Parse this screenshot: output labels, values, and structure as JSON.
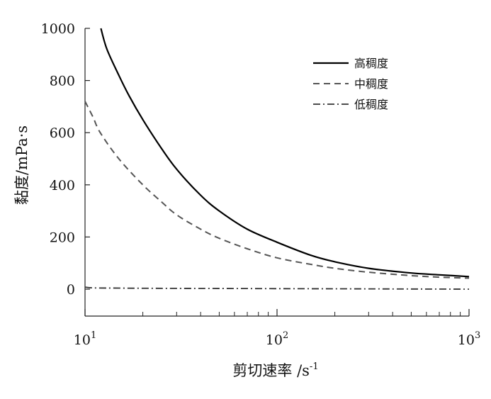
{
  "chart_data": {
    "type": "line",
    "title": "",
    "xlabel": "剪切速率 /s",
    "xlabel_sup": "-1",
    "ylabel": "黏度/mPa·s",
    "xscale": "log",
    "xlim": [
      10,
      1000
    ],
    "ylim": [
      -100,
      1000
    ],
    "x_ticks": [
      {
        "value": 10,
        "base": "10",
        "exp": "1"
      },
      {
        "value": 100,
        "base": "10",
        "exp": "2"
      },
      {
        "value": 1000,
        "base": "10",
        "exp": "3"
      }
    ],
    "y_ticks": [
      {
        "value": 0,
        "label": "0"
      },
      {
        "value": 200,
        "label": "200"
      },
      {
        "value": 400,
        "label": "400"
      },
      {
        "value": 600,
        "label": "600"
      },
      {
        "value": 800,
        "label": "800"
      },
      {
        "value": 1000,
        "label": "1000"
      }
    ],
    "grid": false,
    "legend_position": "top-right",
    "series": [
      {
        "name": "高稠度",
        "style": "solid",
        "color": "#000000",
        "x": [
          12.1,
          13,
          15,
          17,
          20,
          25,
          30,
          40,
          50,
          70,
          100,
          150,
          200,
          300,
          500,
          700,
          1000
        ],
        "y": [
          1000,
          920,
          820,
          740,
          650,
          540,
          460,
          360,
          300,
          230,
          180,
          130,
          105,
          80,
          62,
          55,
          48
        ]
      },
      {
        "name": "中稠度",
        "style": "dashed",
        "color": "#555555",
        "x": [
          10,
          11,
          12,
          15,
          20,
          25,
          30,
          40,
          50,
          70,
          100,
          150,
          200,
          300,
          500,
          700,
          1000
        ],
        "y": [
          720,
          660,
          600,
          500,
          400,
          335,
          285,
          230,
          195,
          155,
          120,
          95,
          80,
          65,
          52,
          46,
          42
        ]
      },
      {
        "name": "低稠度",
        "style": "dashdot",
        "color": "#333333",
        "x": [
          10,
          11,
          15,
          30,
          100,
          300,
          1000
        ],
        "y": [
          8,
          5,
          4,
          3,
          2,
          1,
          0
        ]
      }
    ]
  }
}
